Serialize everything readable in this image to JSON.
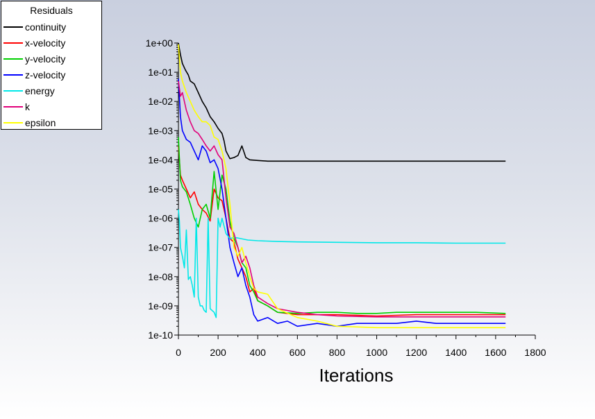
{
  "chart_data": {
    "type": "line",
    "title": "",
    "xlabel": "Iterations",
    "ylabel": "",
    "y_scale": "log",
    "xlim": [
      0,
      1800
    ],
    "ylim": [
      1e-10,
      1
    ],
    "x_ticks": [
      "0",
      "200",
      "400",
      "600",
      "800",
      "1000",
      "1200",
      "1400",
      "1600",
      "1800"
    ],
    "y_ticks": [
      "1e-10",
      "1e-09",
      "1e-08",
      "1e-07",
      "1e-06",
      "1e-05",
      "1e-04",
      "1e-03",
      "1e-02",
      "1e-01",
      "1e+00"
    ],
    "legend": {
      "title": "Residuals",
      "placement": "top-left"
    },
    "series": [
      {
        "name": "continuity",
        "color": "#000000",
        "x": [
          0,
          10,
          20,
          35,
          50,
          60,
          80,
          100,
          120,
          140,
          160,
          180,
          200,
          220,
          230,
          240,
          260,
          280,
          300,
          320,
          340,
          360,
          400,
          450,
          500,
          600,
          800,
          1000,
          1200,
          1400,
          1650
        ],
        "y": [
          1.0,
          0.4,
          0.2,
          0.12,
          0.08,
          0.05,
          0.04,
          0.02,
          0.01,
          0.006,
          0.003,
          0.002,
          0.0012,
          0.0008,
          0.00045,
          0.0002,
          0.00011,
          0.00012,
          0.00014,
          0.0003,
          0.00012,
          0.0001,
          9.5e-05,
          9e-05,
          9e-05,
          9e-05,
          9e-05,
          9e-05,
          9e-05,
          9e-05,
          9e-05
        ]
      },
      {
        "name": "x-velocity",
        "color": "#ff0000",
        "x": [
          0,
          10,
          20,
          40,
          60,
          80,
          100,
          120,
          140,
          160,
          180,
          200,
          220,
          240,
          260,
          280,
          300,
          320,
          340,
          360,
          380,
          400,
          450,
          500,
          600,
          700,
          800,
          1000,
          1200,
          1400,
          1650
        ],
        "y": [
          0.0003,
          3e-05,
          2e-05,
          1e-05,
          5e-06,
          8e-06,
          3e-06,
          2e-06,
          1.5e-06,
          8e-07,
          1e-05,
          5e-06,
          4e-06,
          1e-06,
          2e-07,
          1.5e-07,
          4e-08,
          2e-08,
          1e-08,
          3e-09,
          4e-09,
          1.5e-09,
          1e-09,
          6e-10,
          5e-10,
          5e-10,
          5e-10,
          4.5e-10,
          5e-10,
          5e-10,
          5e-10
        ]
      },
      {
        "name": "y-velocity",
        "color": "#00d000",
        "x": [
          0,
          10,
          20,
          40,
          60,
          80,
          100,
          120,
          140,
          160,
          180,
          200,
          220,
          240,
          260,
          280,
          300,
          320,
          340,
          360,
          380,
          400,
          450,
          500,
          600,
          700,
          800,
          900,
          1000,
          1100,
          1200,
          1300,
          1400,
          1500,
          1650
        ],
        "y": [
          0.0006,
          2e-05,
          1.2e-05,
          8e-06,
          3e-06,
          1e-06,
          5e-07,
          2e-06,
          3e-06,
          1e-06,
          4e-05,
          2e-06,
          3e-05,
          1e-05,
          8e-07,
          2e-07,
          1e-07,
          3e-08,
          2e-08,
          5e-09,
          3e-09,
          1.5e-09,
          1e-09,
          6e-10,
          5.5e-10,
          6e-10,
          6e-10,
          5.5e-10,
          5.5e-10,
          6e-10,
          6e-10,
          6e-10,
          6e-10,
          6e-10,
          5.5e-10
        ]
      },
      {
        "name": "z-velocity",
        "color": "#0000ff",
        "x": [
          0,
          10,
          20,
          40,
          60,
          80,
          100,
          120,
          140,
          160,
          180,
          200,
          220,
          240,
          260,
          280,
          300,
          320,
          340,
          360,
          380,
          400,
          450,
          500,
          550,
          600,
          700,
          800,
          900,
          1000,
          1100,
          1200,
          1300,
          1400,
          1500,
          1650
        ],
        "y": [
          0.06,
          0.003,
          0.001,
          0.0005,
          0.0004,
          0.0002,
          0.0001,
          0.0003,
          0.0002,
          8e-05,
          0.0001,
          5e-05,
          1e-05,
          1e-06,
          1e-07,
          3e-08,
          1e-08,
          2e-08,
          5e-09,
          2e-09,
          5e-10,
          3e-10,
          4e-10,
          2.5e-10,
          3e-10,
          2e-10,
          2.5e-10,
          2e-10,
          2.5e-10,
          2.5e-10,
          2.5e-10,
          3e-10,
          2.5e-10,
          2.5e-10,
          2.5e-10,
          2.5e-10
        ]
      },
      {
        "name": "energy",
        "color": "#00e8e8",
        "x": [
          0,
          5,
          10,
          20,
          30,
          40,
          50,
          60,
          70,
          80,
          90,
          100,
          110,
          120,
          130,
          140,
          150,
          160,
          180,
          190,
          200,
          210,
          220,
          240,
          260,
          280,
          300,
          350,
          400,
          500,
          600,
          800,
          1000,
          1200,
          1400,
          1650
        ],
        "y": [
          2e-06,
          8e-07,
          1e-07,
          5e-08,
          2e-08,
          4e-07,
          8e-09,
          1e-08,
          5e-09,
          2e-09,
          1e-06,
          2e-09,
          1e-09,
          1e-09,
          7e-10,
          6e-10,
          1e-06,
          8e-10,
          6e-10,
          4e-10,
          1e-06,
          5e-07,
          1e-06,
          3e-07,
          2e-07,
          2.2e-07,
          2.1e-07,
          1.8e-07,
          1.7e-07,
          1.6e-07,
          1.55e-07,
          1.5e-07,
          1.45e-07,
          1.45e-07,
          1.4e-07,
          1.4e-07
        ]
      },
      {
        "name": "k",
        "color": "#e0007a",
        "x": [
          0,
          10,
          20,
          40,
          60,
          80,
          100,
          120,
          140,
          160,
          180,
          200,
          220,
          240,
          260,
          280,
          300,
          320,
          340,
          360,
          380,
          400,
          450,
          500,
          600,
          700,
          800,
          1000,
          1200,
          1400,
          1650
        ],
        "y": [
          0.05,
          0.015,
          0.02,
          0.005,
          0.002,
          0.001,
          0.0008,
          0.0005,
          0.0003,
          0.0002,
          0.0003,
          0.00015,
          0.0001,
          5e-06,
          5e-07,
          3e-07,
          1e-07,
          3e-08,
          5e-08,
          2e-08,
          5e-09,
          2e-09,
          1.2e-09,
          8e-10,
          6e-10,
          5e-10,
          4.5e-10,
          4.2e-10,
          4.2e-10,
          4.2e-10,
          4.2e-10
        ]
      },
      {
        "name": "epsilon",
        "color": "#ffff00",
        "x": [
          0,
          10,
          20,
          40,
          60,
          80,
          100,
          120,
          140,
          160,
          180,
          200,
          220,
          240,
          260,
          280,
          300,
          320,
          340,
          360,
          380,
          400,
          450,
          500,
          600,
          700,
          800,
          1000,
          1200,
          1400,
          1650
        ],
        "y": [
          0.9,
          0.1,
          0.05,
          0.02,
          0.01,
          0.005,
          0.003,
          0.002,
          0.002,
          0.0015,
          0.0006,
          0.0005,
          0.0002,
          5e-05,
          3e-06,
          1e-07,
          5e-08,
          1e-07,
          3e-08,
          1e-08,
          4e-09,
          3e-09,
          2.5e-09,
          8e-10,
          4e-10,
          3e-10,
          2e-10,
          1.8e-10,
          1.8e-10,
          1.8e-10,
          1.8e-10
        ]
      }
    ]
  }
}
